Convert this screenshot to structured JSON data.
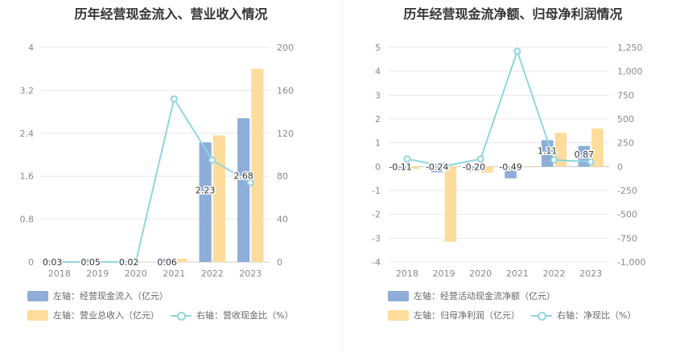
{
  "colors": {
    "bar_a": "#8eadd9",
    "bar_b": "#fedc9c",
    "line": "#8fd6dc",
    "grid": "#e8e8e8",
    "axis_text": "#8a8a8a"
  },
  "chart_data": [
    {
      "type": "bar",
      "title": "历年经营现金流入、营业收入情况",
      "categories": [
        "2018",
        "2019",
        "2020",
        "2021",
        "2022",
        "2023"
      ],
      "left_axis": {
        "ticks": [
          "0",
          "0.8",
          "1.6",
          "2.4",
          "3.2",
          "4"
        ],
        "ylim": [
          0,
          4
        ]
      },
      "right_axis": {
        "ticks": [
          "0",
          "40",
          "80",
          "120",
          "160",
          "200"
        ],
        "ylim": [
          0,
          200
        ]
      },
      "series": [
        {
          "name": "左轴：经营现金流入（亿元）",
          "axis": "left",
          "kind": "bar",
          "values": [
            0.03,
            0.05,
            0.02,
            0.06,
            2.23,
            2.68
          ],
          "labels": [
            "0.03",
            "0.05",
            "0.02",
            "0.06",
            "2.23",
            "2.68"
          ]
        },
        {
          "name": "左轴：营业总收入（亿元）",
          "axis": "left",
          "kind": "bar",
          "values": [
            0.005,
            0.005,
            0.005,
            0.06,
            2.36,
            3.6
          ]
        },
        {
          "name": "右轴：营收现金比（%）",
          "axis": "right",
          "kind": "line",
          "values": [
            0,
            0,
            0,
            152,
            95,
            74
          ]
        }
      ]
    },
    {
      "type": "bar",
      "title": "历年经营现金流净额、归母净利润情况",
      "categories": [
        "2018",
        "2019",
        "2020",
        "2021",
        "2022",
        "2023"
      ],
      "left_axis": {
        "ticks": [
          "-4",
          "-3",
          "-2",
          "-1",
          "0",
          "1",
          "2",
          "3",
          "4",
          "5"
        ],
        "ylim": [
          -4,
          5
        ]
      },
      "right_axis": {
        "ticks": [
          "-1,000",
          "-750",
          "-500",
          "-250",
          "0",
          "250",
          "500",
          "750",
          "1,000",
          "1,250"
        ],
        "ylim": [
          -1000,
          1250
        ]
      },
      "series": [
        {
          "name": "左轴：经营活动现金流净额（亿元）",
          "axis": "left",
          "kind": "bar",
          "values": [
            -0.11,
            -0.24,
            -0.2,
            -0.49,
            1.11,
            0.87
          ],
          "labels": [
            "-0.11",
            "-0.24",
            "-0.20",
            "-0.49",
            "1.11",
            "0.87"
          ]
        },
        {
          "name": "左轴：归母净利润（亿元）",
          "axis": "left",
          "kind": "bar",
          "values": [
            -0.1,
            -3.15,
            -0.25,
            -0.03,
            1.42,
            1.6
          ]
        },
        {
          "name": "右轴：净现比（%）",
          "axis": "right",
          "kind": "line",
          "values": [
            80,
            5,
            80,
            1210,
            70,
            50
          ]
        }
      ]
    }
  ]
}
